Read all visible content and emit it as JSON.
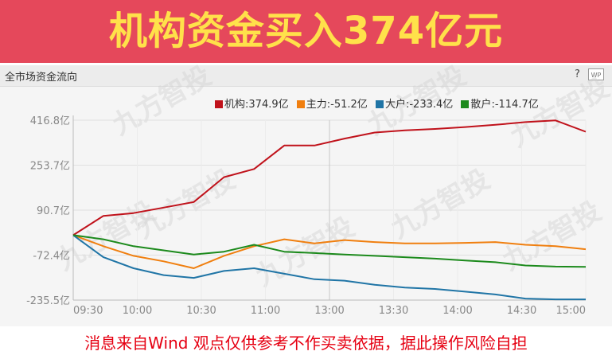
{
  "banner": {
    "title": "机构资金买入374亿元"
  },
  "panel": {
    "title": "全市场资金流向",
    "help_icon": "?",
    "wp_icon": "WP"
  },
  "watermark": "九方智投",
  "footer": "消息来自Wind  观点仅供参考不作买卖依据，据此操作风险自担",
  "chart_data": {
    "type": "line",
    "x_ticks": [
      "09:30",
      "10:00",
      "10:30",
      "11:00",
      "13:00",
      "13:30",
      "14:00",
      "14:30",
      "15:00"
    ],
    "y_ticks": [
      "416.8亿",
      "253.7亿",
      "90.7亿",
      "-72.4亿",
      "-235.5亿"
    ],
    "y_tick_values": [
      416.8,
      253.7,
      90.7,
      -72.4,
      -235.5
    ],
    "ylim": [
      -235.5,
      416.8
    ],
    "grid": true,
    "legend_position": "top-right",
    "legend": [
      {
        "name": "机构",
        "value": "374.9亿",
        "color": "#c0121b"
      },
      {
        "name": "主力",
        "value": "-51.2亿",
        "color": "#f07f0f"
      },
      {
        "name": "大户",
        "value": "-233.4亿",
        "color": "#2075a6"
      },
      {
        "name": "散户",
        "value": "-114.7亿",
        "color": "#1c8a1c"
      }
    ],
    "x_points": [
      "09:30",
      "09:45",
      "10:00",
      "10:15",
      "10:30",
      "10:45",
      "11:00",
      "11:15",
      "11:30/13:00",
      "13:15",
      "13:30",
      "13:45",
      "14:00",
      "14:15",
      "14:30",
      "14:45",
      "14:55",
      "15:00"
    ],
    "series": [
      {
        "name": "机构",
        "color": "#c0121b",
        "values": [
          0,
          70,
          80,
          100,
          120,
          210,
          240,
          325,
          325,
          350,
          372,
          380,
          385,
          392,
          400,
          410,
          416,
          375
        ]
      },
      {
        "name": "主力",
        "color": "#f07f0f",
        "values": [
          0,
          -40,
          -75,
          -95,
          -120,
          -75,
          -40,
          -15,
          -30,
          -18,
          -25,
          -30,
          -30,
          -28,
          -25,
          -35,
          -40,
          -51
        ]
      },
      {
        "name": "大户",
        "color": "#2075a6",
        "values": [
          0,
          -80,
          -120,
          -145,
          -155,
          -130,
          -120,
          -140,
          -160,
          -165,
          -180,
          -190,
          -195,
          -205,
          -215,
          -230,
          -233,
          -233
        ]
      },
      {
        "name": "散户",
        "color": "#1c8a1c",
        "values": [
          0,
          -15,
          -40,
          -55,
          -70,
          -60,
          -35,
          -60,
          -65,
          -70,
          -75,
          -80,
          -85,
          -92,
          -98,
          -110,
          -114,
          -115
        ]
      }
    ]
  }
}
